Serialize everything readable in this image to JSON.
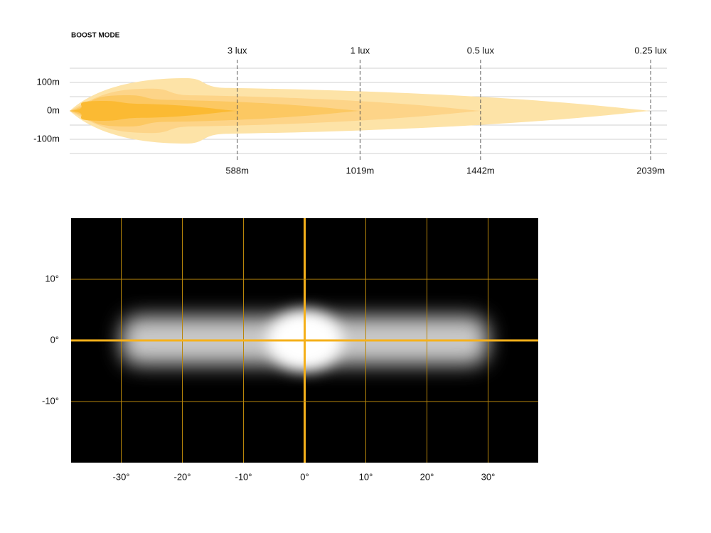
{
  "chart_data": [
    {
      "type": "beam-profile",
      "title": "BOOST MODE",
      "xlim": [
        0,
        2096
      ],
      "ylim": [
        -150,
        150
      ],
      "yticks": [
        {
          "value": 100,
          "label": "100m"
        },
        {
          "value": 0,
          "label": "0m"
        },
        {
          "value": -100,
          "label": "-100m"
        }
      ],
      "minor_yticks": [
        150,
        50,
        -50,
        -150
      ],
      "contours": [
        {
          "label": "0.25 lux",
          "distance": 2039,
          "distance_label": "2039m",
          "half_width": 115,
          "color": "#fde3a7"
        },
        {
          "label": "0.5 lux",
          "distance": 1442,
          "distance_label": "1442m",
          "half_width": 78,
          "color": "#fdd488"
        },
        {
          "label": "1 lux",
          "distance": 1019,
          "distance_label": "1019m",
          "half_width": 55,
          "color": "#fcc862"
        },
        {
          "label": "3 lux",
          "distance": 588,
          "distance_label": "588m",
          "half_width": 35,
          "color": "#fbba33"
        }
      ]
    },
    {
      "type": "beam-pattern",
      "xlim": [
        -38.2,
        38.2
      ],
      "ylim": [
        -20,
        20
      ],
      "xticks": [
        {
          "value": -30,
          "label": "-30°"
        },
        {
          "value": -20,
          "label": "-20°"
        },
        {
          "value": -10,
          "label": "-10°"
        },
        {
          "value": 0,
          "label": "0°"
        },
        {
          "value": 10,
          "label": "10°"
        },
        {
          "value": 20,
          "label": "20°"
        },
        {
          "value": 30,
          "label": "30°"
        }
      ],
      "yticks": [
        {
          "value": 10,
          "label": "10°"
        },
        {
          "value": 0,
          "label": "0°"
        },
        {
          "value": -10,
          "label": "-10°"
        }
      ],
      "spread_x": [
        -30,
        30
      ],
      "spread_y": [
        -4,
        4
      ],
      "hotspot_x": [
        -5,
        5
      ],
      "hotspot_y": [
        -5,
        5
      ],
      "background": "#000000",
      "grid_color": "#b8860b",
      "axis_color": "#f5b01a"
    }
  ]
}
